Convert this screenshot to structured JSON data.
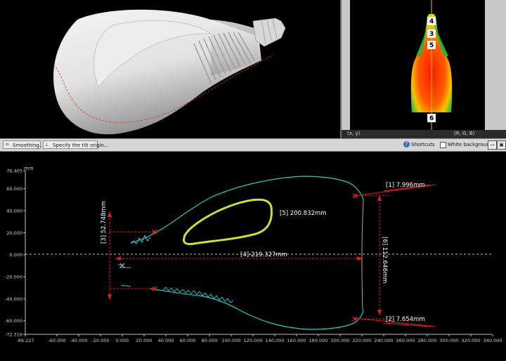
{
  "status_bar": {
    "xy": "(x, y)",
    "rgb": "(R, G, B)"
  },
  "heatmap_markers": [
    "4",
    "3",
    "5",
    "6"
  ],
  "toolbar": {
    "smoothing_label": "Smoothing...",
    "tilt_origin_label": "Specify the tilt origin...",
    "shortcuts_label": "Shortcuts",
    "white_background_label": "White background"
  },
  "chart_data": {
    "type": "line",
    "unit_label": "mm",
    "ylim": [
      -72.316,
      76.405
    ],
    "xlim": [
      -89.227,
      350
    ],
    "y_ticks": [
      "76.405",
      "60.000",
      "40.000",
      "20.000",
      "0.000",
      "-20.000",
      "-40.000",
      "-60.000",
      "-72.316"
    ],
    "x_ticks": [
      "-89.227",
      "-60.000",
      "-40.000",
      "-20.000",
      "0.000",
      "20.000",
      "40.000",
      "60.000",
      "80.000",
      "100.000",
      "120.000",
      "140.000",
      "160.000",
      "180.000",
      "200.000",
      "220.000",
      "240.000",
      "260.000",
      "280.000",
      "300.000",
      "320.000",
      "340.000"
    ],
    "measurements": [
      {
        "id": "[1]",
        "text": "[1] 7.996mm"
      },
      {
        "id": "[2]",
        "text": "[2] 7.654mm"
      },
      {
        "id": "[3]",
        "text": "[3] 52.748mm"
      },
      {
        "id": "[4]",
        "text": "[4]-219.327mm"
      },
      {
        "id": "[5]",
        "text": "[5] 200.832mm"
      },
      {
        "id": "[6]",
        "text": "[6] 112.646mm"
      }
    ],
    "colors": {
      "profile": "#2fc7c7",
      "section": "#c6e33a",
      "dimension": "#e0201c",
      "axis": "#ffffff"
    }
  }
}
